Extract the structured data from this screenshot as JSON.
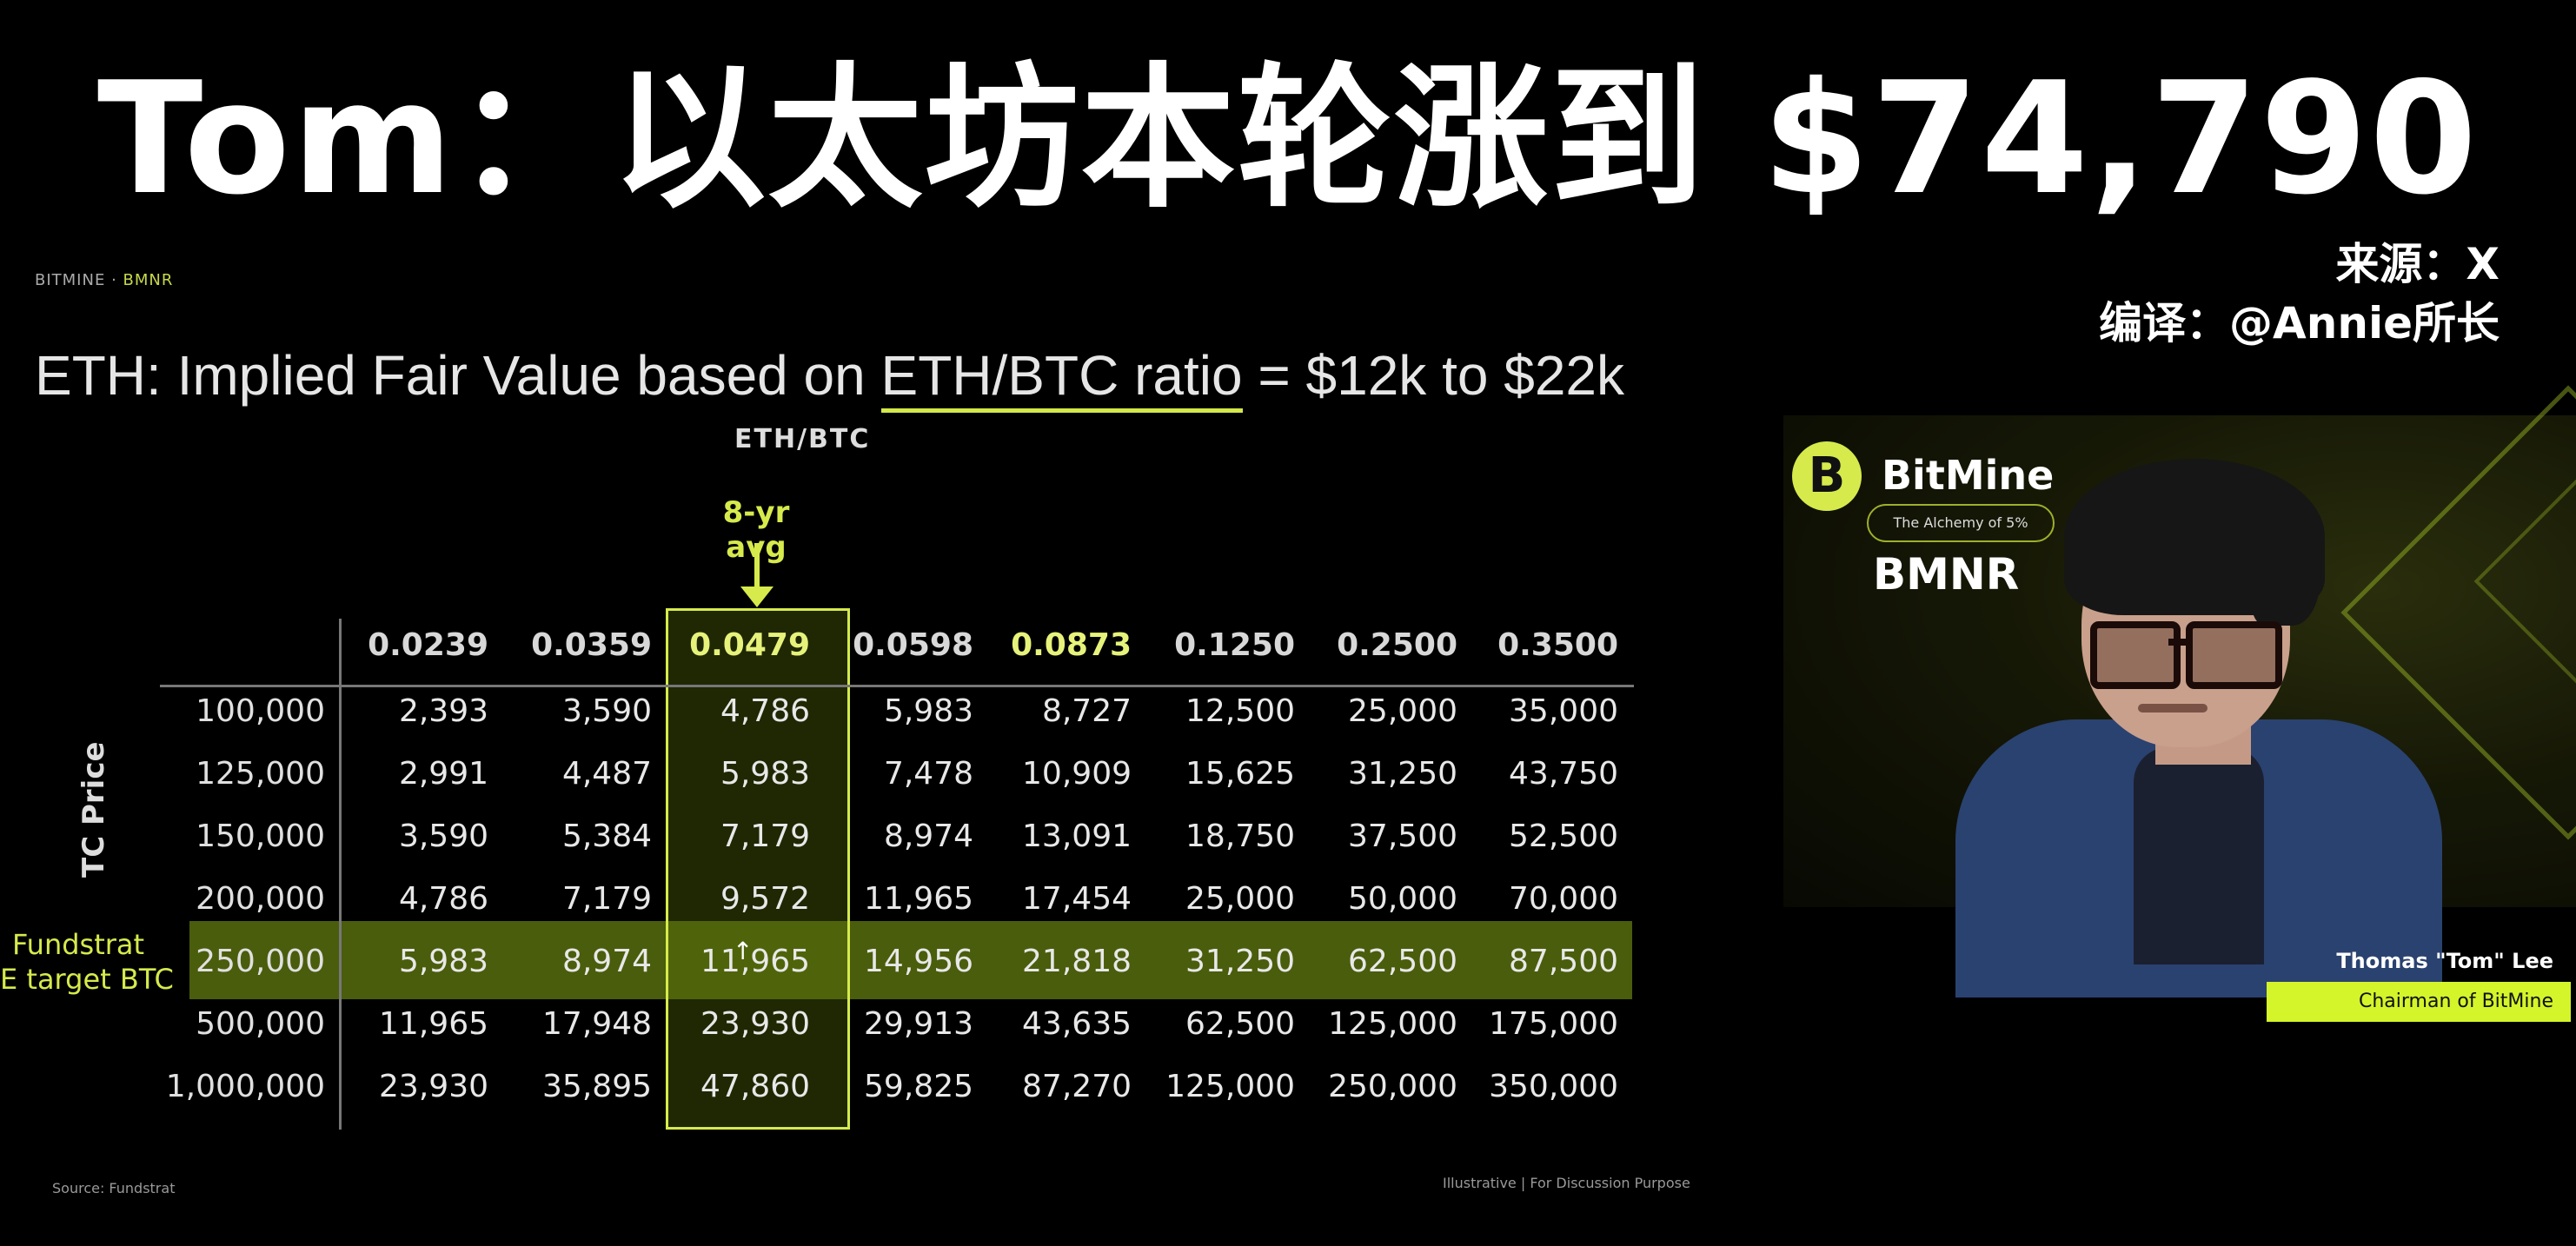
{
  "headline": "Tom：以太坊本轮涨到 $74,790",
  "credits": {
    "source": "来源：X",
    "translator": "编译：@Annie所长"
  },
  "slide": {
    "brand": "BITMINE",
    "brand_accent": "BMNR",
    "title_prefix": "ETH: Implied Fair Value based on ",
    "title_underlined": "ETH/BTC ratio",
    "title_suffix": " = $12k to $22k",
    "column_axis_label": "ETH/BTC",
    "avg_label": "8-yr avg",
    "row_axis_label": "TC Price",
    "fundstrat_label_line1": "Fundstrat",
    "fundstrat_label_line2": "E target BTC",
    "source_note": "Source: Fundstrat",
    "footnote": "Illustrative  |  For Discussion Purpose",
    "table": {
      "columns": [
        "0.0239",
        "0.0359",
        "0.0479",
        "0.0598",
        "0.0873",
        "0.1250",
        "0.2500",
        "0.3500"
      ],
      "highlight_column_index": 2,
      "highlight_row_index": 4,
      "rows": [
        {
          "btc": "100,000",
          "values": [
            "2,393",
            "3,590",
            "4,786",
            "5,983",
            "8,727",
            "12,500",
            "25,000",
            "35,000"
          ]
        },
        {
          "btc": "125,000",
          "values": [
            "2,991",
            "4,487",
            "5,983",
            "7,478",
            "10,909",
            "15,625",
            "31,250",
            "43,750"
          ]
        },
        {
          "btc": "150,000",
          "values": [
            "3,590",
            "5,384",
            "7,179",
            "8,974",
            "13,091",
            "18,750",
            "37,500",
            "52,500"
          ]
        },
        {
          "btc": "200,000",
          "values": [
            "4,786",
            "7,179",
            "9,572",
            "11,965",
            "17,454",
            "25,000",
            "50,000",
            "70,000"
          ]
        },
        {
          "btc": "250,000",
          "values": [
            "5,983",
            "8,974",
            "11,965",
            "14,956",
            "21,818",
            "31,250",
            "62,500",
            "87,500"
          ]
        },
        {
          "btc": "500,000",
          "values": [
            "11,965",
            "17,948",
            "23,930",
            "29,913",
            "43,635",
            "62,500",
            "125,000",
            "175,000"
          ]
        },
        {
          "btc": "1,000,000",
          "values": [
            "23,930",
            "35,895",
            "47,860",
            "59,825",
            "87,270",
            "125,000",
            "250,000",
            "350,000"
          ]
        }
      ]
    }
  },
  "video": {
    "logo_letter": "B",
    "brand_name": "BitMine",
    "tagline": "The Alchemy of 5%",
    "ticker": "BMNR",
    "speaker_name": "Thomas \"Tom\" Lee",
    "speaker_title": "Chairman of BitMine",
    "accent_color": "#d4f52a"
  }
}
